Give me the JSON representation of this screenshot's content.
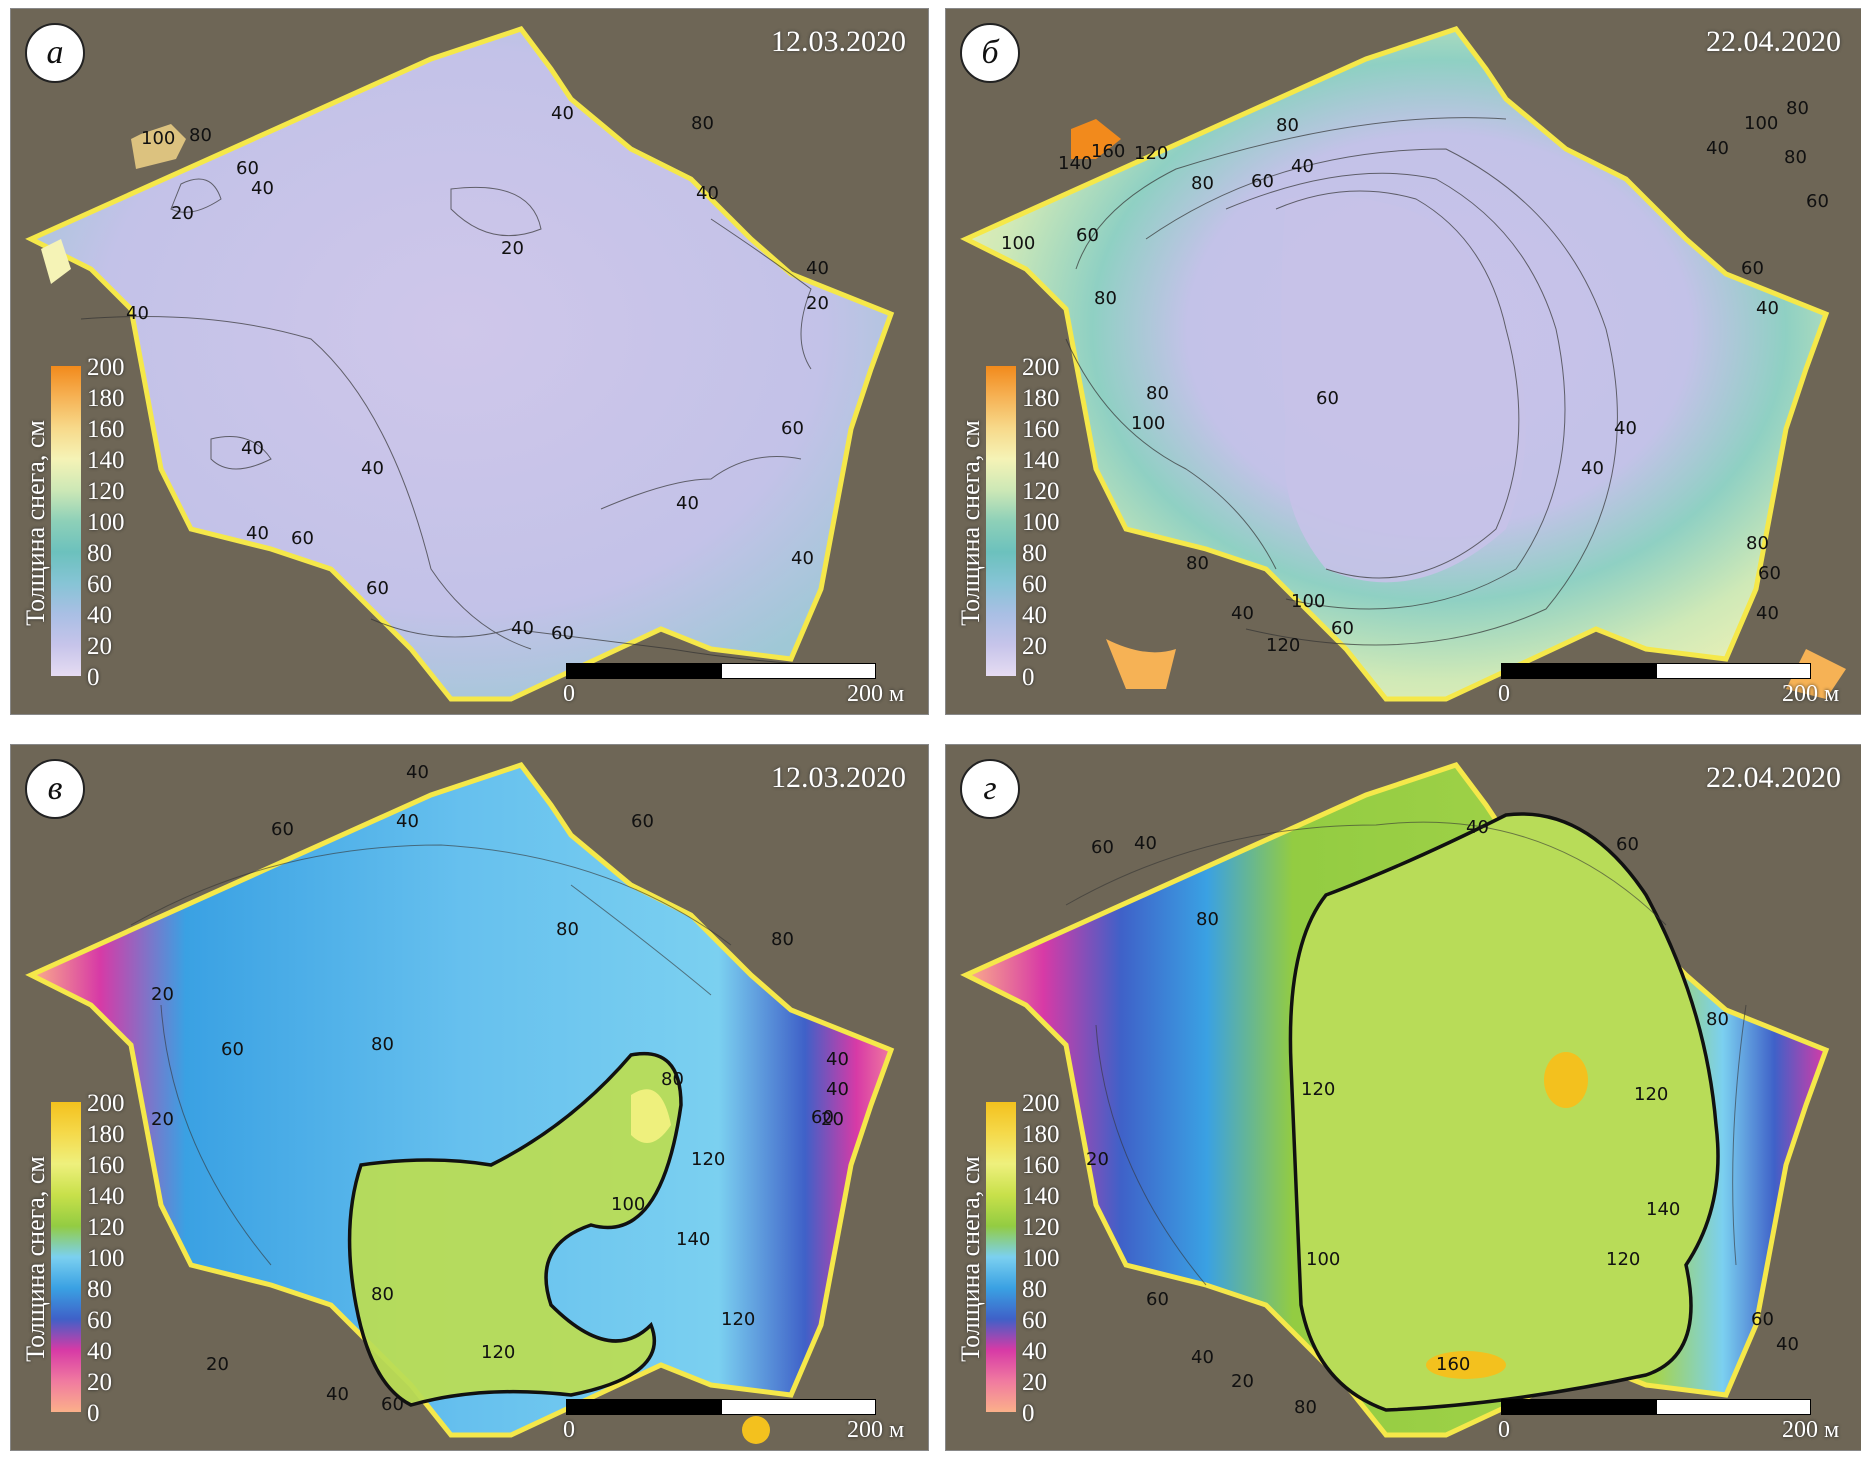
{
  "legend_title": "Толщина снега, см",
  "legend_ticks": [
    "0",
    "20",
    "40",
    "60",
    "80",
    "100",
    "120",
    "140",
    "160",
    "180",
    "200"
  ],
  "scale_bar": {
    "zero_label": "0",
    "max_label": "200 м"
  },
  "palettes": {
    "top": [
      "#e6dcf2",
      "#c6c4ea",
      "#a9bfe4",
      "#86c4d5",
      "#6cc1bd",
      "#8ed0b8",
      "#cde8b6",
      "#f5f3b6",
      "#f7d98a",
      "#f6b255",
      "#f28a1c"
    ],
    "bottom": [
      "#fbb08a",
      "#f07aa0",
      "#d73aa6",
      "#3f61c8",
      "#3aa1e3",
      "#7bd0f0",
      "#93cc42",
      "#c8e04a",
      "#eef07d",
      "#f5d94a",
      "#f3c11e"
    ]
  },
  "panels": [
    {
      "letter": "а",
      "date": "12.03.2020",
      "palette": "top",
      "contour_labels": [
        "100",
        "80",
        "60",
        "40",
        "20",
        "20",
        "40",
        "80",
        "40",
        "40",
        "20",
        "40",
        "40",
        "40",
        "40",
        "60",
        "40",
        "40",
        "60",
        "60",
        "60",
        "40"
      ]
    },
    {
      "letter": "б",
      "date": "22.04.2020",
      "palette": "top",
      "contour_labels": [
        "140",
        "160",
        "120",
        "80",
        "60",
        "100",
        "80",
        "40",
        "60",
        "80",
        "60",
        "80",
        "40",
        "100",
        "40",
        "60",
        "80",
        "100",
        "80",
        "60",
        "100",
        "80",
        "40",
        "60",
        "40",
        "120",
        "40",
        "80",
        "60",
        "40"
      ]
    },
    {
      "letter": "в",
      "date": "12.03.2020",
      "palette": "bottom",
      "contour_labels": [
        "20",
        "40",
        "60",
        "40",
        "60",
        "80",
        "80",
        "80",
        "80",
        "60",
        "40",
        "20",
        "40",
        "60",
        "20",
        "20",
        "80",
        "100",
        "120",
        "140",
        "120",
        "120",
        "40",
        "60"
      ]
    },
    {
      "letter": "г",
      "date": "22.04.2020",
      "palette": "bottom",
      "contour_labels": [
        "60",
        "40",
        "40",
        "60",
        "80",
        "80",
        "120",
        "120",
        "140",
        "120",
        "100",
        "160",
        "20",
        "60",
        "40",
        "20",
        "80",
        "40",
        "60"
      ]
    }
  ]
}
